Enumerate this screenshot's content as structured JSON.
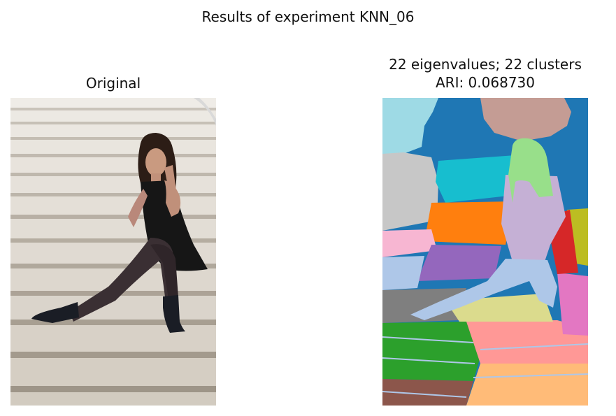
{
  "figure": {
    "suptitle": "Results of experiment KNN_06"
  },
  "panels": [
    {
      "title": "Original"
    },
    {
      "title_line1": "22 eigenvalues; 22 clusters",
      "title_line2": "ARI: 0.068730"
    }
  ],
  "segmentation": {
    "palette": [
      "#1f77b4",
      "#aec7e8",
      "#ff7f0e",
      "#2ca02c",
      "#98df8a",
      "#d62728",
      "#ff9896",
      "#9467bd",
      "#c5b0d5",
      "#8c564b",
      "#c49c94",
      "#e377c2",
      "#f7b6d2",
      "#7f7f7f",
      "#c7c7c7",
      "#bcbd22",
      "#dbdb8d",
      "#17becf",
      "#9edae5",
      "#ffbb78"
    ]
  }
}
